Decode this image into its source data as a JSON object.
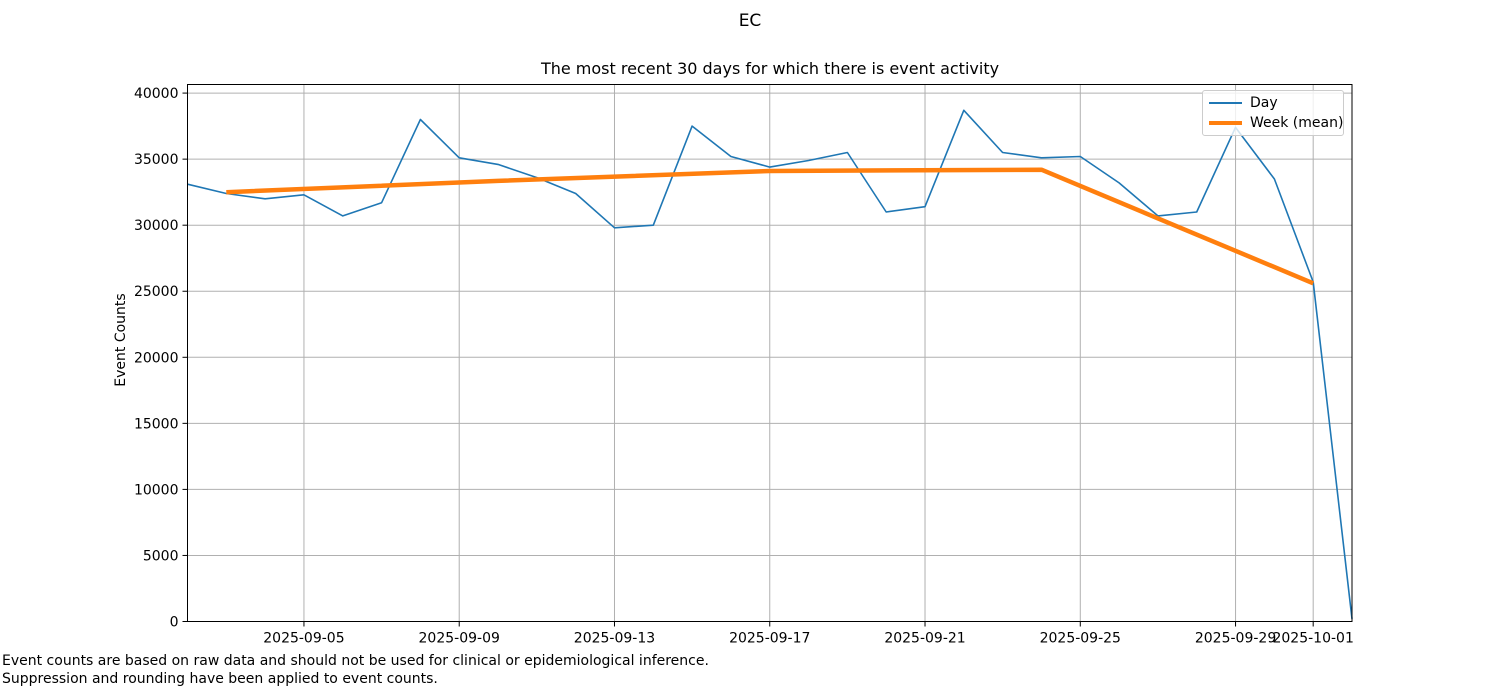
{
  "figure": {
    "suptitle": "EC"
  },
  "footnotes": [
    "Event counts are based on raw data and should not be used for clinical or epidemiological inference.",
    "Suppression and rounding have been applied to event counts."
  ],
  "chart_data": {
    "type": "line",
    "title": "The most recent 30 days for which there is event activity",
    "xlabel": "",
    "ylabel": "Event Counts",
    "grid": true,
    "grid_color": "#b0b0b0",
    "spine_color": "#000000",
    "ylim": [
      0,
      40650
    ],
    "xlim": [
      "2025-09-02",
      "2025-10-02"
    ],
    "x": [
      "2025-09-02",
      "2025-09-03",
      "2025-09-04",
      "2025-09-05",
      "2025-09-06",
      "2025-09-07",
      "2025-09-08",
      "2025-09-09",
      "2025-09-10",
      "2025-09-11",
      "2025-09-12",
      "2025-09-13",
      "2025-09-14",
      "2025-09-15",
      "2025-09-16",
      "2025-09-17",
      "2025-09-18",
      "2025-09-19",
      "2025-09-20",
      "2025-09-21",
      "2025-09-22",
      "2025-09-23",
      "2025-09-24",
      "2025-09-25",
      "2025-09-26",
      "2025-09-27",
      "2025-09-28",
      "2025-09-29",
      "2025-09-30",
      "2025-10-01",
      "2025-10-02"
    ],
    "series": [
      {
        "name": "Day",
        "color": "#1f77b4",
        "line_width": 1.6,
        "values": [
          33100,
          32400,
          32000,
          32300,
          30700,
          31700,
          38000,
          35100,
          34600,
          33600,
          32400,
          29800,
          30000,
          37500,
          35200,
          34400,
          34900,
          35500,
          31000,
          31400,
          38700,
          35500,
          35100,
          35200,
          33200,
          30700,
          31000,
          37400,
          33500,
          25700,
          200
        ]
      },
      {
        "name": "Week (mean)",
        "color": "#ff7f0e",
        "line_width": 4.5,
        "dates": [
          "2025-09-03",
          "2025-09-10",
          "2025-09-17",
          "2025-09-24",
          "2025-10-01"
        ],
        "values": [
          32500,
          33350,
          34100,
          34200,
          25600
        ]
      }
    ],
    "xticks": [
      "2025-09-05",
      "2025-09-09",
      "2025-09-13",
      "2025-09-17",
      "2025-09-21",
      "2025-09-25",
      "2025-09-29",
      "2025-10-01"
    ],
    "yticks": [
      {
        "value": 0,
        "label": "0"
      },
      {
        "value": 5000,
        "label": "5000"
      },
      {
        "value": 10000,
        "label": "10000"
      },
      {
        "value": 15000,
        "label": "15000"
      },
      {
        "value": 20000,
        "label": "20000"
      },
      {
        "value": 25000,
        "label": "25000"
      },
      {
        "value": 30000,
        "label": "30000"
      },
      {
        "value": 35000,
        "label": "35000"
      },
      {
        "value": 40000,
        "label": "40000"
      }
    ],
    "legend": {
      "position": "upper right",
      "items": [
        {
          "label": "Day",
          "color": "#1f77b4",
          "sample_height": 2
        },
        {
          "label": "Week (mean)",
          "color": "#ff7f0e",
          "sample_height": 4
        }
      ]
    }
  }
}
